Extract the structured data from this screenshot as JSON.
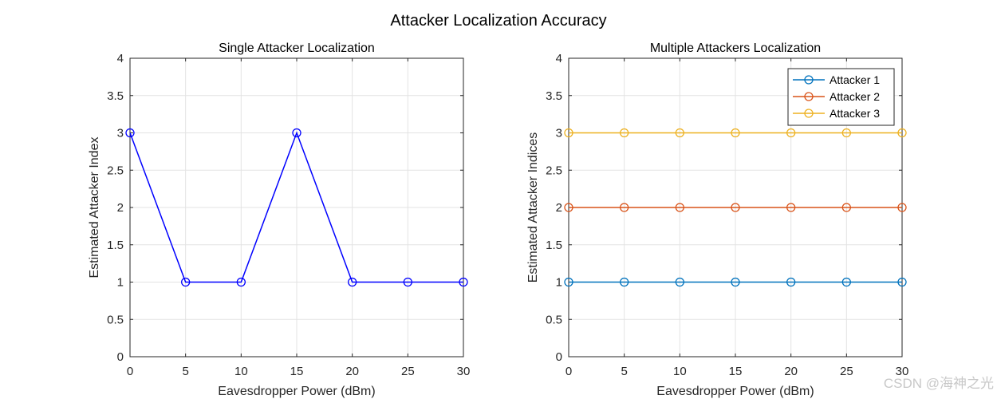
{
  "figure": {
    "suptitle": "Attacker Localization Accuracy",
    "watermark": "CSDN @海神之光"
  },
  "chart_data": [
    {
      "type": "line",
      "title": "Single Attacker Localization",
      "xlabel": "Eavesdropper Power (dBm)",
      "ylabel": "Estimated Attacker Index",
      "x": [
        0,
        5,
        10,
        15,
        20,
        25,
        30
      ],
      "xlim": [
        0,
        30
      ],
      "ylim": [
        0,
        4
      ],
      "xticks": [
        0,
        5,
        10,
        15,
        20,
        25,
        30
      ],
      "yticks": [
        0,
        0.5,
        1,
        1.5,
        2,
        2.5,
        3,
        3.5,
        4
      ],
      "grid": true,
      "legend": null,
      "series": [
        {
          "color": "#0000ff",
          "marker": "circle",
          "values": [
            3,
            1,
            1,
            3,
            1,
            1,
            1
          ]
        }
      ]
    },
    {
      "type": "line",
      "title": "Multiple Attackers Localization",
      "xlabel": "Eavesdropper Power (dBm)",
      "ylabel": "Estimated Attacker Indices",
      "x": [
        0,
        5,
        10,
        15,
        20,
        25,
        30
      ],
      "xlim": [
        0,
        30
      ],
      "ylim": [
        0,
        4
      ],
      "xticks": [
        0,
        5,
        10,
        15,
        20,
        25,
        30
      ],
      "yticks": [
        0,
        0.5,
        1,
        1.5,
        2,
        2.5,
        3,
        3.5,
        4
      ],
      "grid": true,
      "legend": "top-right",
      "series": [
        {
          "name": "Attacker 1",
          "color": "#0072bd",
          "marker": "circle",
          "values": [
            1,
            1,
            1,
            1,
            1,
            1,
            1
          ]
        },
        {
          "name": "Attacker 2",
          "color": "#d95319",
          "marker": "circle",
          "values": [
            2,
            2,
            2,
            2,
            2,
            2,
            2
          ]
        },
        {
          "name": "Attacker 3",
          "color": "#edb120",
          "marker": "circle",
          "values": [
            3,
            3,
            3,
            3,
            3,
            3,
            3
          ]
        }
      ]
    }
  ]
}
